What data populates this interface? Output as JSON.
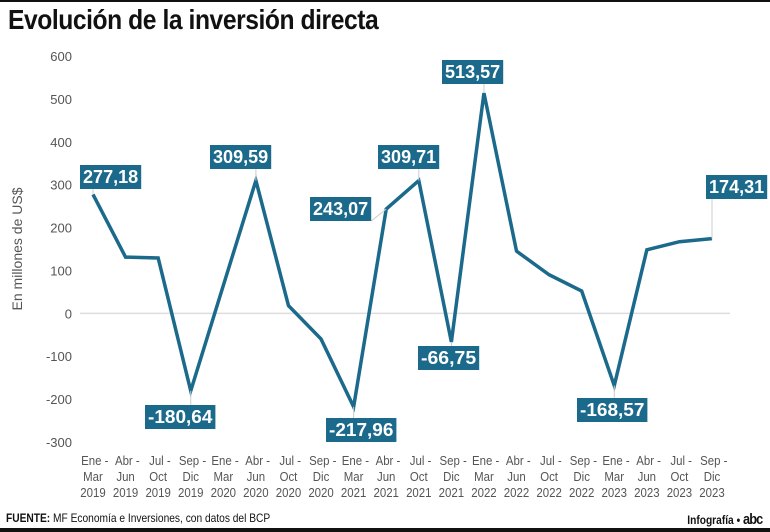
{
  "header": {
    "title": "Evolución de la inversión directa"
  },
  "footer": {
    "source_label": "FUENTE:",
    "source_text": "MF Economía e Inversiones, con datos del BCP",
    "credit": "Infografía •",
    "logo": "abc"
  },
  "colors": {
    "line": "#1b6a8c",
    "label_bg": "#1b6a8c",
    "label_text": "#ffffff",
    "zero_line": "#dddddd",
    "axis_text": "#555555"
  },
  "chart_data": {
    "type": "line",
    "title": "Evolución de la inversión directa",
    "ylabel": "En millones de US$",
    "xlabel": "",
    "ylim": [
      -300,
      600
    ],
    "yticks": [
      600,
      500,
      400,
      300,
      200,
      100,
      0,
      -100,
      -200,
      -300
    ],
    "grid": "zero line only",
    "categories": [
      [
        "Ene -",
        "Mar",
        "2019"
      ],
      [
        "Abr -",
        "Jun",
        "2019"
      ],
      [
        "Jul -",
        "Oct",
        "2019"
      ],
      [
        "Sep -",
        "Dic",
        "2019"
      ],
      [
        "Ene -",
        "Mar",
        "2020"
      ],
      [
        "Abr -",
        "Jun",
        "2020"
      ],
      [
        "Jul -",
        "Oct",
        "2020"
      ],
      [
        "Sep -",
        "Dic",
        "2020"
      ],
      [
        "Ene -",
        "Mar",
        "2021"
      ],
      [
        "Abr -",
        "Jun",
        "2021"
      ],
      [
        "Jul -",
        "Oct",
        "2021"
      ],
      [
        "Sep -",
        "Dic",
        "2021"
      ],
      [
        "Ene -",
        "Mar",
        "2022"
      ],
      [
        "Abr -",
        "Jun",
        "2022"
      ],
      [
        "Jul -",
        "Oct",
        "2022"
      ],
      [
        "Sep -",
        "Dic",
        "2022"
      ],
      [
        "Ene -",
        "Mar",
        "2023"
      ],
      [
        "Abr -",
        "Jun",
        "2023"
      ],
      [
        "Jul -",
        "Oct",
        "2023"
      ],
      [
        "Sep -",
        "Dic",
        "2023"
      ]
    ],
    "values": [
      277.18,
      131,
      129,
      -180.64,
      65,
      309.59,
      18,
      -60,
      -217.96,
      243.07,
      309.71,
      -66.75,
      513.57,
      145,
      90,
      52,
      -168.57,
      148,
      167,
      174.31
    ],
    "data_labels": [
      {
        "index": 0,
        "text": "277,18"
      },
      {
        "index": 3,
        "text": "-180,64"
      },
      {
        "index": 5,
        "text": "309,59"
      },
      {
        "index": 8,
        "text": "-217,96"
      },
      {
        "index": 9,
        "text": "243,07"
      },
      {
        "index": 10,
        "text": "309,71"
      },
      {
        "index": 11,
        "text": "-66,75"
      },
      {
        "index": 12,
        "text": "513,57"
      },
      {
        "index": 16,
        "text": "-168,57"
      },
      {
        "index": 19,
        "text": "174,31"
      }
    ]
  }
}
